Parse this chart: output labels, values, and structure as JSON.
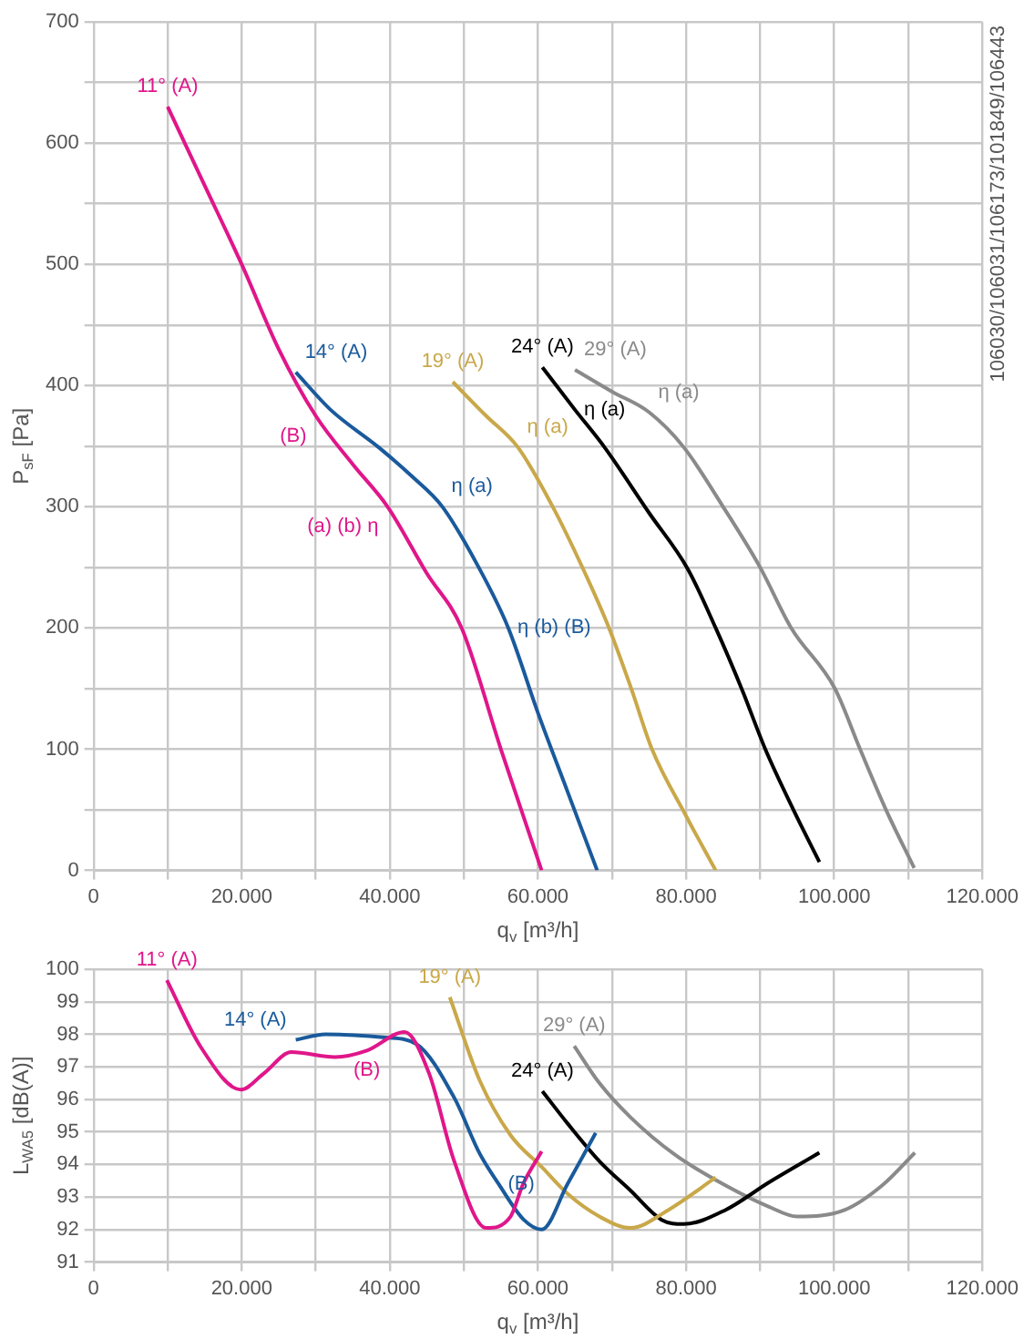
{
  "chart_data": [
    {
      "type": "line",
      "xlabel": "q$_{v}$ [m³/h]",
      "ylabel": "P$_{sF}$ [Pa]",
      "grid": true,
      "legend": false,
      "marker": "none",
      "line_style": "solid",
      "xlim": [
        0,
        120000
      ],
      "xticks": [
        {
          "value": 0,
          "label": "0"
        },
        {
          "value": 10000,
          "label": null
        },
        {
          "value": 20000,
          "label": "20.000"
        },
        {
          "value": 30000,
          "label": null
        },
        {
          "value": 40000,
          "label": "40.000"
        },
        {
          "value": 50000,
          "label": null
        },
        {
          "value": 60000,
          "label": "60.000"
        },
        {
          "value": 70000,
          "label": null
        },
        {
          "value": 80000,
          "label": "80.000"
        },
        {
          "value": 90000,
          "label": null
        },
        {
          "value": 100000,
          "label": "100.000"
        },
        {
          "value": 110000,
          "label": null
        },
        {
          "value": 120000,
          "label": "120.000"
        }
      ],
      "ylim": [
        0,
        700
      ],
      "yticks": [
        0,
        {
          "value": 50,
          "label": null
        },
        100,
        {
          "value": 150,
          "label": null
        },
        200,
        {
          "value": 250,
          "label": null
        },
        300,
        {
          "value": 350,
          "label": null
        },
        400,
        {
          "value": 450,
          "label": null
        },
        500,
        {
          "value": 550,
          "label": null
        },
        600,
        {
          "value": 650,
          "label": null
        },
        700
      ],
      "series": [
        {
          "color": "#e0168a",
          "x": [
            10000,
            15000,
            20000,
            25000,
            30000,
            35000,
            39700,
            45000,
            49700,
            55000,
            60500
          ],
          "values": [
            630,
            565,
            500,
            430,
            375,
            335,
            300,
            245,
            200,
            100,
            0
          ]
        },
        {
          "color": "#1a5a9c",
          "x": [
            27300,
            32000,
            38500,
            43000,
            47100,
            52000,
            56000,
            60000,
            64000,
            68000
          ],
          "values": [
            411,
            380,
            349,
            325,
            300,
            250,
            200,
            130,
            65,
            0
          ]
        },
        {
          "color": "#c9a84a",
          "x": [
            48500,
            53000,
            57300,
            62000,
            66000,
            69600,
            72600,
            75400,
            80000,
            84000
          ],
          "values": [
            403,
            375,
            349,
            300,
            250,
            200,
            150,
            100,
            45,
            0
          ]
        },
        {
          "color": "#000000",
          "x": [
            60600,
            65000,
            69000,
            75000,
            80200,
            84000,
            87500,
            90700,
            94500,
            98000
          ],
          "values": [
            415,
            380,
            349,
            295,
            249,
            200,
            150,
            100,
            50,
            7
          ]
        },
        {
          "color": "#8a8a8a",
          "x": [
            65000,
            70000,
            75000,
            79700,
            85000,
            90000,
            94200,
            100100,
            103500,
            107000,
            110800
          ],
          "values": [
            413,
            395,
            378,
            349,
            300,
            250,
            200,
            150,
            100,
            50,
            2
          ]
        }
      ],
      "annotations": [
        {
          "text": "11° (A)",
          "x": 10000,
          "y": 630
        },
        {
          "text": "14° (A)",
          "x": 27300,
          "y": 411
        },
        {
          "text": "19° (A)",
          "x": 48500,
          "y": 403
        },
        {
          "text": "24° (A)",
          "x": 60600,
          "y": 415
        },
        {
          "text": "29° (A)",
          "x": 65000,
          "y": 413
        },
        {
          "text": "(B)",
          "x": 30000,
          "y": 375
        },
        {
          "text": "(a) (b) η",
          "x": 39700,
          "y": 300
        },
        {
          "text": "η (a)",
          "x": 47100,
          "y": 300
        },
        {
          "text": "η (b) (B)",
          "x": 56000,
          "y": 200
        },
        {
          "text": "η (a)",
          "x": 57300,
          "y": 349
        },
        {
          "text": "η (a)",
          "x": 65000,
          "y": 380
        },
        {
          "text": "η (a)",
          "x": 75000,
          "y": 378
        },
        "106030/106031/106173/101849/106443"
      ]
    },
    {
      "type": "line",
      "xlabel": "q$_{v}$ [m³/h]",
      "ylabel": "L$_{WA5}$ [dB(A)]",
      "grid": true,
      "legend": false,
      "marker": "none",
      "line_style": "solid",
      "xlim": [
        0,
        120000
      ],
      "xticks": [
        {
          "value": 0,
          "label": "0"
        },
        {
          "value": 10000,
          "label": null
        },
        {
          "value": 20000,
          "label": "20.000"
        },
        {
          "value": 30000,
          "label": null
        },
        {
          "value": 40000,
          "label": "40.000"
        },
        {
          "value": 50000,
          "label": null
        },
        {
          "value": 60000,
          "label": "60.000"
        },
        {
          "value": 70000,
          "label": null
        },
        {
          "value": 80000,
          "label": "80.000"
        },
        {
          "value": 90000,
          "label": null
        },
        {
          "value": 100000,
          "label": "100.000"
        },
        {
          "value": 110000,
          "label": null
        },
        {
          "value": 120000,
          "label": "120.000"
        }
      ],
      "ylim": [
        91,
        100
      ],
      "yticks": [
        91,
        92,
        93,
        94,
        95,
        96,
        97,
        98,
        99,
        100
      ],
      "series": [
        {
          "color": "#e0168a",
          "x": [
            9900,
            14500,
            19900,
            23000,
            26700,
            32600,
            36900,
            42000,
            45300,
            48700,
            53000,
            56300,
            58000,
            60500
          ],
          "values": [
            99.66,
            97.6,
            96.3,
            96.8,
            97.45,
            97.3,
            97.5,
            98.07,
            96.8,
            94.1,
            92.05,
            92.4,
            93.4,
            94.4
          ]
        },
        {
          "color": "#1a5a9c",
          "x": [
            27300,
            31300,
            39400,
            43600,
            48700,
            52100,
            54700,
            58100,
            60500,
            64000,
            67800
          ],
          "values": [
            97.83,
            98.0,
            97.9,
            97.7,
            96.05,
            94.35,
            93.4,
            92.3,
            92.0,
            93.4,
            94.97
          ]
        },
        {
          "color": "#c9a84a",
          "x": [
            48100,
            52100,
            56300,
            60600,
            64000,
            68300,
            72500,
            77600,
            84000
          ],
          "values": [
            99.14,
            96.6,
            94.9,
            93.9,
            93.1,
            92.4,
            92.05,
            92.6,
            93.6
          ]
        },
        {
          "color": "#000000",
          "x": [
            60600,
            64000,
            68300,
            72500,
            76700,
            79700,
            85300,
            91200,
            98000
          ],
          "values": [
            96.25,
            95.26,
            94.1,
            93.2,
            92.3,
            92.17,
            92.6,
            93.45,
            94.36
          ]
        },
        {
          "color": "#8a8a8a",
          "x": [
            64900,
            68300,
            72500,
            78500,
            85300,
            91200,
            95000,
            101400,
            106500,
            110900
          ],
          "values": [
            97.64,
            96.5,
            95.45,
            94.3,
            93.36,
            92.7,
            92.4,
            92.6,
            93.36,
            94.36
          ]
        }
      ],
      "annotations": [
        {
          "text": "11° (A)",
          "x": 9900,
          "y": 99.66
        },
        {
          "text": "14° (A)",
          "x": 27300,
          "y": 97.83
        },
        {
          "text": "(B)",
          "x": 36900,
          "y": 97.5
        },
        {
          "text": "19° (A)",
          "x": 48100,
          "y": 99.14
        },
        {
          "text": "24° (A)",
          "x": 60600,
          "y": 96.25
        },
        {
          "text": "29° (A)",
          "x": 64900,
          "y": 97.64
        },
        {
          "text": "(B)",
          "x": 54700,
          "y": 93.4
        }
      ]
    }
  ]
}
